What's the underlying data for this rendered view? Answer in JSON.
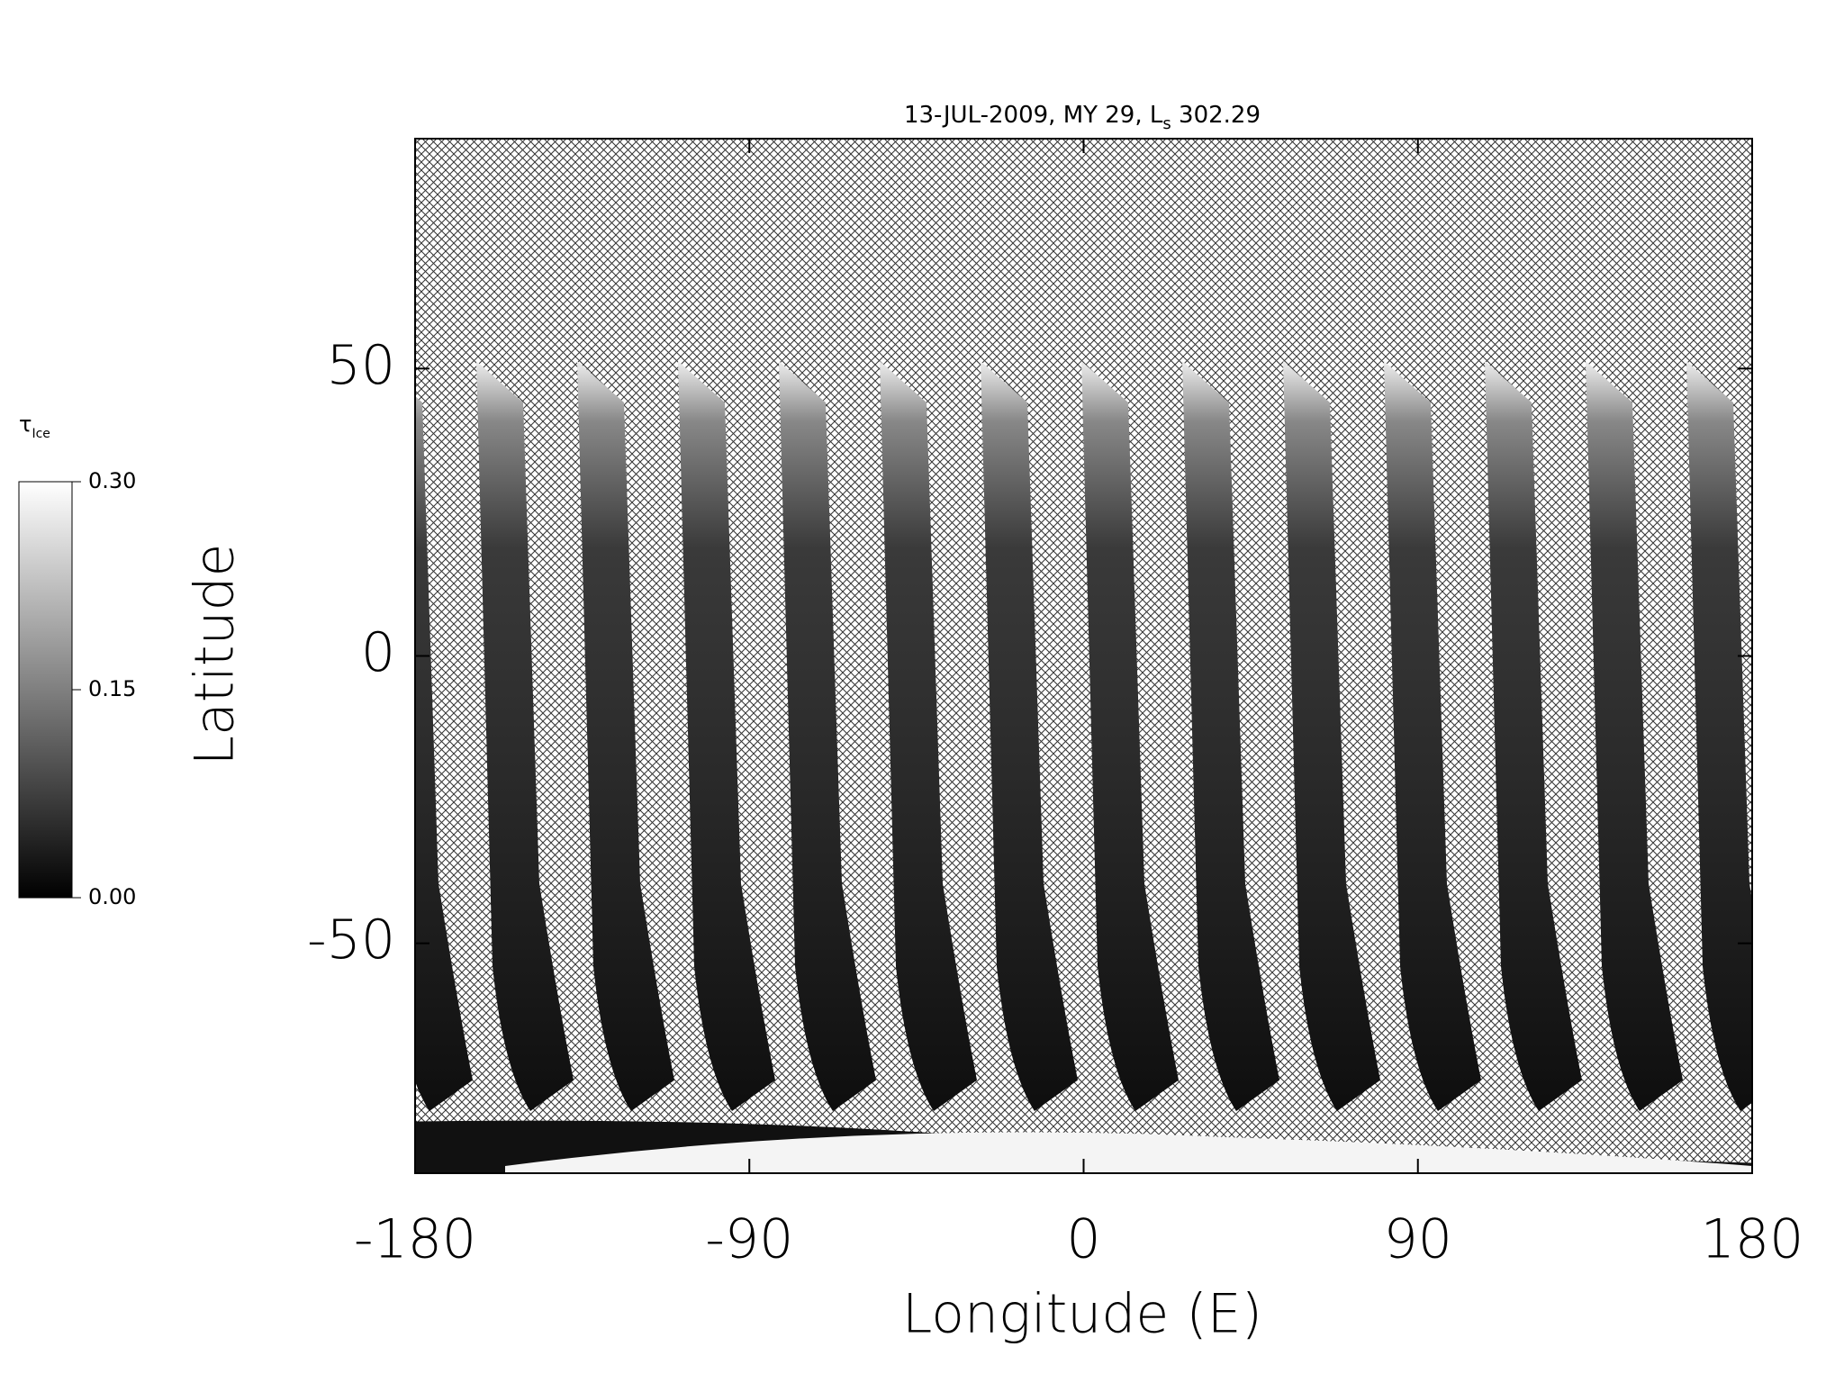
{
  "chart_data": {
    "type": "map",
    "title": {
      "main": "13-JUL-2009, MY 29,  L",
      "subscript": "s",
      "tail": " 302.29"
    },
    "xlabel": "Longitude (E)",
    "ylabel": "Latitude",
    "xlim": [
      -180,
      180
    ],
    "xticks": [
      -180,
      -90,
      0,
      90,
      180
    ],
    "ylim": [
      -90,
      90
    ],
    "yticks": [
      -50,
      0,
      50
    ],
    "colorbar": {
      "label": "τ",
      "label_subscript": "Ice",
      "lim": [
        0,
        0.3
      ],
      "ticks": [
        {
          "value": 0,
          "label": "0.00"
        },
        {
          "value": 0.15,
          "label": "0.15"
        },
        {
          "value": 0.3,
          "label": "0.30"
        }
      ],
      "colormap": "gray"
    }
  }
}
